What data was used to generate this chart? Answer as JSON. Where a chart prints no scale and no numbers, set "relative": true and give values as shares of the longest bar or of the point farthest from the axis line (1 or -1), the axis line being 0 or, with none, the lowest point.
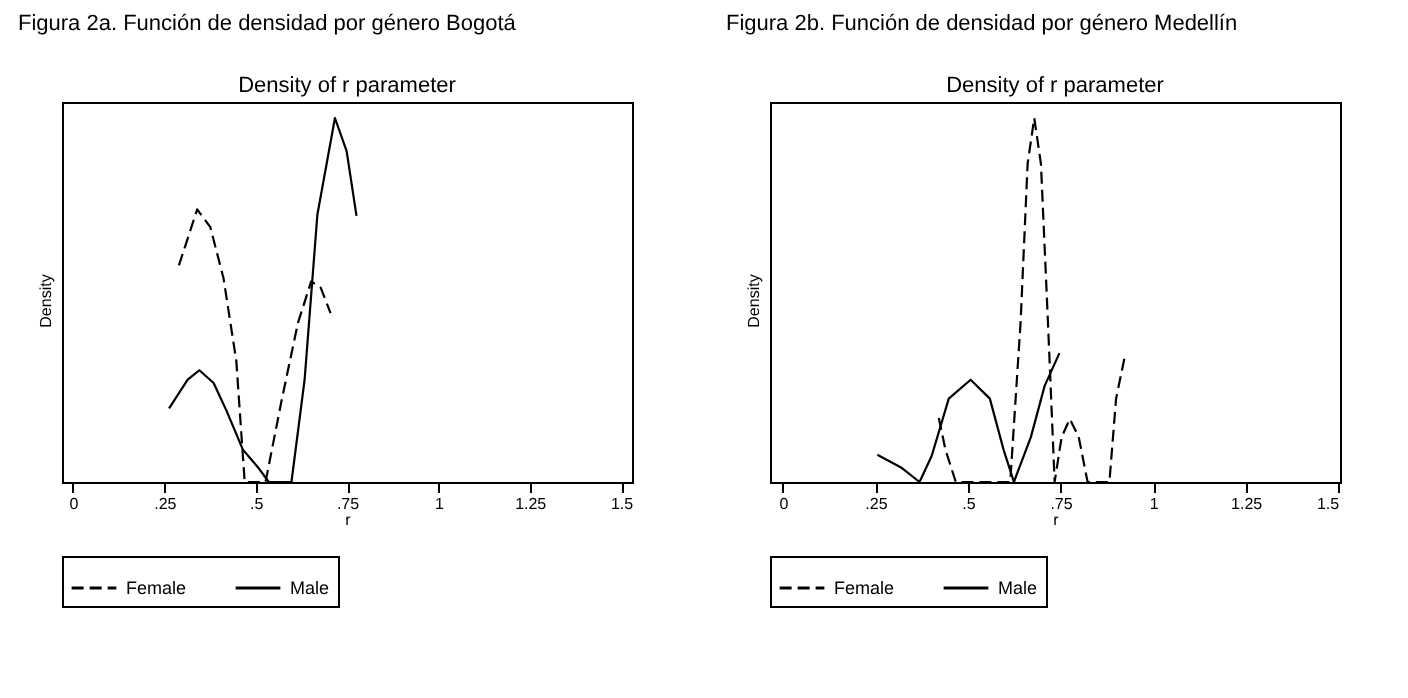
{
  "chart_data": [
    {
      "type": "line",
      "title": "Density of r parameter",
      "annotations": [
        "Figura 2a. Función de densidad por género Bogotá"
      ],
      "xlabel": "r",
      "ylabel": "Density",
      "relative": true,
      "tick_labels": "x",
      "grid": false,
      "legend": "bottom",
      "marker": "none",
      "xlim": [
        -0.03,
        1.53
      ],
      "xticks": [
        0,
        {
          "value": 0.25,
          "label": ".25"
        },
        {
          "value": 0.5,
          "label": ".5"
        },
        {
          "value": 0.75,
          "label": ".75"
        },
        1,
        1.25,
        1.5
      ],
      "series": [
        {
          "name": "Female",
          "color": "#000000",
          "line_style": "dashed",
          "x": [
            0.29,
            0.34,
            0.376,
            0.412,
            0.447,
            0.47,
            0.527,
            0.572,
            0.616,
            0.652,
            0.678,
            0.705
          ],
          "values": [
            0.595,
            0.749,
            0.7,
            0.56,
            0.333,
            0,
            0,
            0.229,
            0.438,
            0.551,
            0.534,
            0.464
          ]
        },
        {
          "name": "Male",
          "color": "#000000",
          "line_style": "solid",
          "x": [
            0.263,
            0.314,
            0.346,
            0.385,
            0.421,
            0.465,
            0.509,
            0.536,
            0.598,
            0.634,
            0.669,
            0.717,
            0.749,
            0.776
          ],
          "values": [
            0.202,
            0.281,
            0.307,
            0.272,
            0.194,
            0.089,
            0.037,
            0,
            0,
            0.281,
            0.735,
            1,
            0.909,
            0.731
          ]
        }
      ]
    },
    {
      "type": "line",
      "title": "Density of r parameter",
      "annotations": [
        "Figura 2b. Función de densidad por género     Medellín"
      ],
      "xlabel": "r",
      "ylabel": "Density",
      "relative": true,
      "tick_labels": "x",
      "grid": false,
      "legend": "bottom",
      "marker": "none",
      "xlim": [
        -0.035,
        1.505
      ],
      "xticks": [
        0,
        {
          "value": 0.25,
          "label": ".25"
        },
        {
          "value": 0.5,
          "label": ".5"
        },
        {
          "value": 0.75,
          "label": ".75"
        },
        1,
        1.25,
        1.5
      ],
      "series": [
        {
          "name": "Female",
          "color": "#000000",
          "line_style": "dashed",
          "x": [
            0.421,
            0.439,
            0.467,
            0.614,
            0.642,
            0.661,
            0.679,
            0.697,
            0.716,
            0.734,
            0.753,
            0.775,
            0.799,
            0.823,
            0.882,
            0.9,
            0.923
          ],
          "values": [
            0.176,
            0.089,
            0,
            0,
            0.438,
            0.874,
            1,
            0.874,
            0.438,
            0,
            0.124,
            0.173,
            0.124,
            0,
            0,
            0.229,
            0.342
          ]
        },
        {
          "name": "Male",
          "color": "#000000",
          "line_style": "solid",
          "x": [
            0.255,
            0.319,
            0.369,
            0.402,
            0.448,
            0.507,
            0.559,
            0.596,
            0.624,
            0.67,
            0.707,
            0.747
          ],
          "values": [
            0.075,
            0.04,
            0,
            0.072,
            0.229,
            0.281,
            0.229,
            0.089,
            0,
            0.124,
            0.264,
            0.354
          ]
        }
      ]
    }
  ]
}
